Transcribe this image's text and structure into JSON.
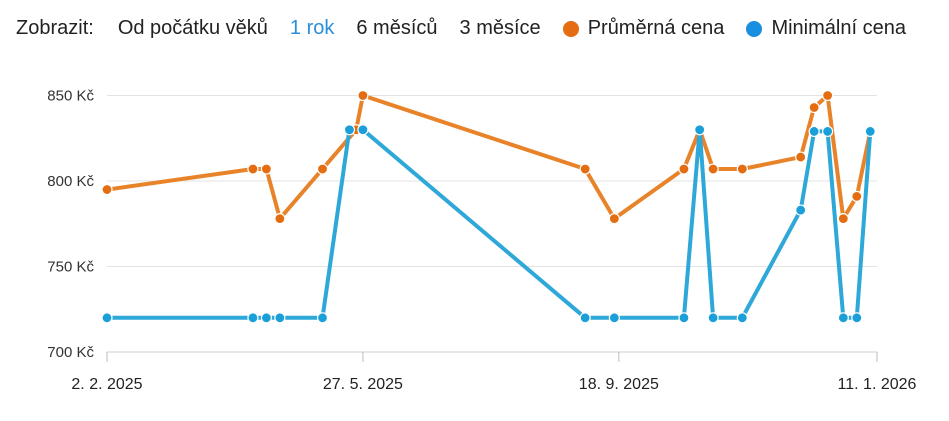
{
  "controls": {
    "label": "Zobrazit:",
    "ranges": [
      {
        "label": "Od počátku věků",
        "active": false
      },
      {
        "label": "1 rok",
        "active": true
      },
      {
        "label": "6 měsíců",
        "active": false
      },
      {
        "label": "3 měsíce",
        "active": false
      }
    ],
    "active_color": "#2a8fd8"
  },
  "chart_data": {
    "type": "line",
    "y_tick_labels": [
      "700 Kč",
      "750 Kč",
      "800 Kč",
      "850 Kč"
    ],
    "y_ticks": [
      700,
      750,
      800,
      850
    ],
    "ylim": [
      700,
      862
    ],
    "xlim": [
      "2025-02-02",
      "2026-01-11"
    ],
    "x_tick_labels": [
      "2. 2. 2025",
      "27. 5. 2025",
      "18. 9. 2025",
      "11. 1. 2026"
    ],
    "x_ticks": [
      "2025-02-02",
      "2025-05-27",
      "2025-09-18",
      "2026-01-11"
    ],
    "grid": true,
    "legend_position": "top",
    "series": [
      {
        "name": "Průměrná cena",
        "color": "#e8832a",
        "marker_color": "#e46d12",
        "points": [
          {
            "x": "2025-02-02",
            "y": 795
          },
          {
            "x": "2025-04-08",
            "y": 807
          },
          {
            "x": "2025-04-14",
            "y": 807
          },
          {
            "x": "2025-04-20",
            "y": 778
          },
          {
            "x": "2025-05-09",
            "y": 807
          },
          {
            "x": "2025-05-24",
            "y": 830
          },
          {
            "x": "2025-05-27",
            "y": 850
          },
          {
            "x": "2025-09-03",
            "y": 807
          },
          {
            "x": "2025-09-16",
            "y": 778
          },
          {
            "x": "2025-10-17",
            "y": 807
          },
          {
            "x": "2025-10-24",
            "y": 830
          },
          {
            "x": "2025-10-30",
            "y": 807
          },
          {
            "x": "2025-11-12",
            "y": 807
          },
          {
            "x": "2025-12-08",
            "y": 814
          },
          {
            "x": "2025-12-14",
            "y": 843
          },
          {
            "x": "2025-12-20",
            "y": 850
          },
          {
            "x": "2025-12-27",
            "y": 778
          },
          {
            "x": "2026-01-02",
            "y": 791
          },
          {
            "x": "2026-01-08",
            "y": 829
          }
        ]
      },
      {
        "name": "Minimální cena",
        "color": "#2ea8d8",
        "marker_color": "#1a9fd8",
        "points": [
          {
            "x": "2025-02-02",
            "y": 720
          },
          {
            "x": "2025-04-08",
            "y": 720
          },
          {
            "x": "2025-04-14",
            "y": 720
          },
          {
            "x": "2025-04-20",
            "y": 720
          },
          {
            "x": "2025-05-09",
            "y": 720
          },
          {
            "x": "2025-05-21",
            "y": 830
          },
          {
            "x": "2025-05-27",
            "y": 830
          },
          {
            "x": "2025-09-03",
            "y": 720
          },
          {
            "x": "2025-09-16",
            "y": 720
          },
          {
            "x": "2025-10-17",
            "y": 720
          },
          {
            "x": "2025-10-24",
            "y": 830
          },
          {
            "x": "2025-10-30",
            "y": 720
          },
          {
            "x": "2025-11-12",
            "y": 720
          },
          {
            "x": "2025-12-08",
            "y": 783
          },
          {
            "x": "2025-12-14",
            "y": 829
          },
          {
            "x": "2025-12-20",
            "y": 829
          },
          {
            "x": "2025-12-27",
            "y": 720
          },
          {
            "x": "2026-01-02",
            "y": 720
          },
          {
            "x": "2026-01-08",
            "y": 829
          }
        ]
      }
    ]
  }
}
